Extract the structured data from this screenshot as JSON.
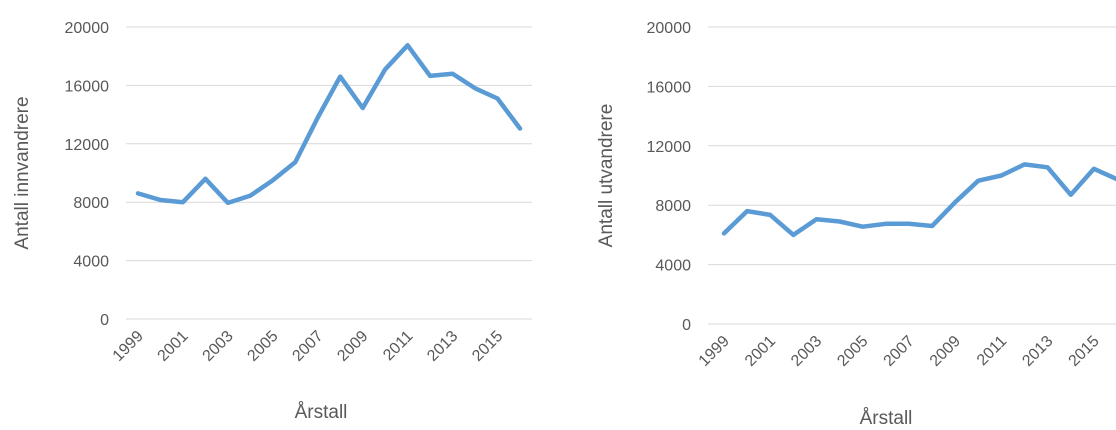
{
  "chart_data": [
    {
      "type": "line",
      "xlabel": "Årstall",
      "ylabel": "Antall innvandrere",
      "ylim": [
        0,
        20000
      ],
      "yticks": [
        "0",
        "4000",
        "8000",
        "12000",
        "16000",
        "20000"
      ],
      "categories": [
        "1999",
        "2000",
        "2001",
        "2002",
        "2003",
        "2004",
        "2005",
        "2006",
        "2007",
        "2008",
        "2009",
        "2010",
        "2011",
        "2012",
        "2013",
        "2014",
        "2015",
        "2016"
      ],
      "xtick_labels": [
        "1999",
        "2001",
        "2003",
        "2005",
        "2007",
        "2009",
        "2011",
        "2013",
        "2015"
      ],
      "grid": true,
      "series": [
        {
          "values": [
            8600,
            8150,
            8000,
            9600,
            7950,
            8450,
            9500,
            10750,
            13800,
            16600,
            14450,
            17100,
            18750,
            16650,
            16800,
            15800,
            15100,
            13050
          ]
        }
      ]
    },
    {
      "type": "line",
      "xlabel": "Årstall",
      "ylabel": "Antall utvandrere",
      "ylim": [
        0,
        20000
      ],
      "yticks": [
        "0",
        "4000",
        "8000",
        "12000",
        "16000",
        "20000"
      ],
      "categories": [
        "1999",
        "2000",
        "2001",
        "2002",
        "2003",
        "2004",
        "2005",
        "2006",
        "2007",
        "2008",
        "2009",
        "2010",
        "2011",
        "2012",
        "2013",
        "2014",
        "2015",
        "2016"
      ],
      "xtick_labels": [
        "1999",
        "2001",
        "2003",
        "2005",
        "2007",
        "2009",
        "2011",
        "2013",
        "2015"
      ],
      "grid": true,
      "series": [
        {
          "values": [
            6100,
            7600,
            7350,
            6000,
            7050,
            6900,
            6550,
            6750,
            6750,
            6600,
            8200,
            9650,
            10000,
            10750,
            10550,
            8700,
            10450,
            9750
          ]
        }
      ]
    }
  ]
}
